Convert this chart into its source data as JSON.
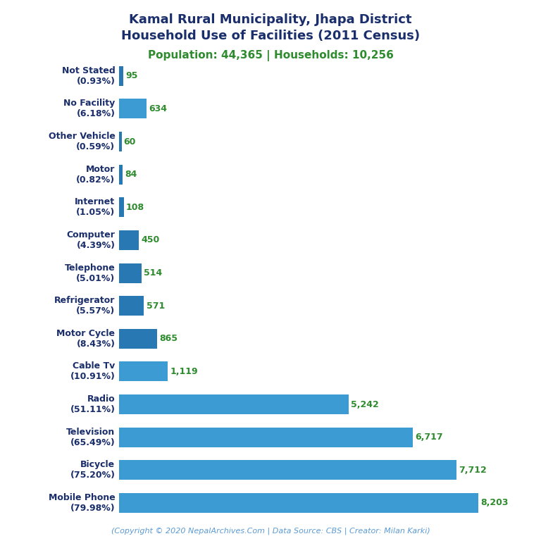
{
  "title_line1": "Kamal Rural Municipality, Jhapa District",
  "title_line2": "Household Use of Facilities (2011 Census)",
  "subtitle": "Population: 44,365 | Households: 10,256",
  "footer": "(Copyright © 2020 NepalArchives.Com | Data Source: CBS | Creator: Milan Karki)",
  "categories": [
    "Not Stated\n(0.93%)",
    "No Facility\n(6.18%)",
    "Other Vehicle\n(0.59%)",
    "Motor\n(0.82%)",
    "Internet\n(1.05%)",
    "Computer\n(4.39%)",
    "Telephone\n(5.01%)",
    "Refrigerator\n(5.57%)",
    "Motor Cycle\n(8.43%)",
    "Cable Tv\n(10.91%)",
    "Radio\n(51.11%)",
    "Television\n(65.49%)",
    "Bicycle\n(75.20%)",
    "Mobile Phone\n(79.98%)"
  ],
  "values": [
    95,
    634,
    60,
    84,
    108,
    450,
    514,
    571,
    865,
    1119,
    5242,
    6717,
    7712,
    8203
  ],
  "value_labels": [
    "95",
    "634",
    "60",
    "84",
    "108",
    "450",
    "514",
    "571",
    "865",
    "1,119",
    "5,242",
    "6,717",
    "7,712",
    "8,203"
  ],
  "bar_colors": [
    "#2878b4",
    "#3d9bd4",
    "#2878b4",
    "#2878b4",
    "#2878b4",
    "#2878b4",
    "#2878b4",
    "#2878b4",
    "#2878b4",
    "#3d9bd4",
    "#3d9bd4",
    "#3d9bd4",
    "#3d9bd4",
    "#3d9bd4"
  ],
  "title_color": "#1a2e6b",
  "subtitle_color": "#2e8b2e",
  "value_color": "#2e8b2e",
  "footer_color": "#5b9bd5",
  "label_color": "#1a2e6b",
  "background_color": "#ffffff",
  "figsize": [
    7.68,
    7.68
  ],
  "dpi": 100
}
